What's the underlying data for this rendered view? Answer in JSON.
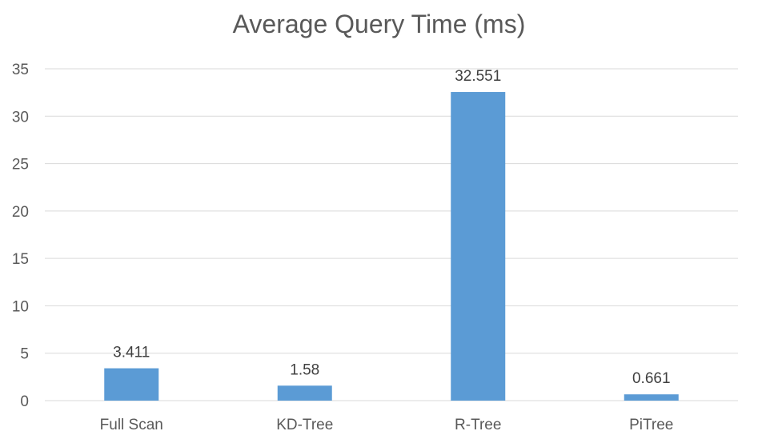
{
  "chart_data": {
    "type": "bar",
    "title": "Average Query Time (ms)",
    "categories": [
      "Full Scan",
      "KD-Tree",
      "R-Tree",
      "PiTree"
    ],
    "values": [
      3.411,
      1.58,
      32.551,
      0.661
    ],
    "data_labels": [
      "3.411",
      "1.58",
      "32.551",
      "0.661"
    ],
    "ylim": [
      0,
      35
    ],
    "yticks": [
      0,
      5,
      10,
      15,
      20,
      25,
      30,
      35
    ],
    "grid": true,
    "legend": "none",
    "bar_color": "#5B9BD5",
    "grid_color": "#D9D9D9"
  }
}
